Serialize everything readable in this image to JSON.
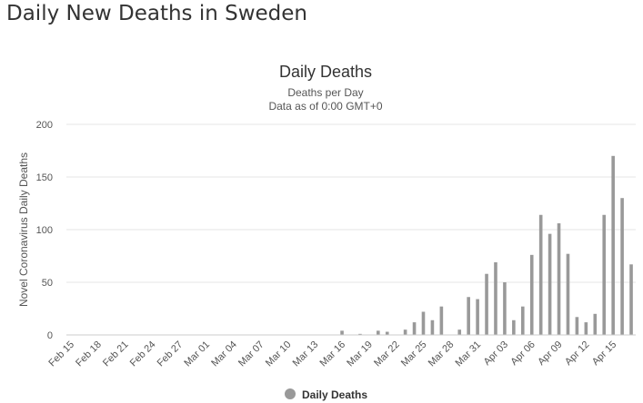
{
  "page": {
    "heading": "Daily New Deaths in Sweden"
  },
  "chart_data": {
    "type": "bar",
    "title": "Daily Deaths",
    "subtitle": [
      "Deaths per Day",
      "Data as of 0:00 GMT+0"
    ],
    "ylabel": "Novel Coronavirus Daily Deaths",
    "xlabel": "",
    "ylim": [
      0,
      200
    ],
    "yticks": [
      0,
      50,
      100,
      150,
      200
    ],
    "grid": true,
    "legend_position": "bottom-center",
    "bar_color": "#999999",
    "categories": [
      "Feb 15",
      "Feb 16",
      "Feb 17",
      "Feb 18",
      "Feb 19",
      "Feb 20",
      "Feb 21",
      "Feb 22",
      "Feb 23",
      "Feb 24",
      "Feb 25",
      "Feb 26",
      "Feb 27",
      "Feb 28",
      "Feb 29",
      "Mar 01",
      "Mar 02",
      "Mar 03",
      "Mar 04",
      "Mar 05",
      "Mar 06",
      "Mar 07",
      "Mar 08",
      "Mar 09",
      "Mar 10",
      "Mar 11",
      "Mar 12",
      "Mar 13",
      "Mar 14",
      "Mar 15",
      "Mar 16",
      "Mar 17",
      "Mar 18",
      "Mar 19",
      "Mar 20",
      "Mar 21",
      "Mar 22",
      "Mar 23",
      "Mar 24",
      "Mar 25",
      "Mar 26",
      "Mar 27",
      "Mar 28",
      "Mar 29",
      "Mar 30",
      "Mar 31",
      "Apr 01",
      "Apr 02",
      "Apr 03",
      "Apr 04",
      "Apr 05",
      "Apr 06",
      "Apr 07",
      "Apr 08",
      "Apr 09",
      "Apr 10",
      "Apr 11",
      "Apr 12",
      "Apr 13",
      "Apr 14",
      "Apr 15",
      "Apr 16",
      "Apr 17"
    ],
    "tick_labels": [
      "Feb 15",
      "Feb 18",
      "Feb 21",
      "Feb 24",
      "Feb 27",
      "Mar 01",
      "Mar 04",
      "Mar 07",
      "Mar 10",
      "Mar 13",
      "Mar 16",
      "Mar 19",
      "Mar 22",
      "Mar 25",
      "Mar 28",
      "Mar 31",
      "Apr 03",
      "Apr 06",
      "Apr 09",
      "Apr 12",
      "Apr 15"
    ],
    "series": [
      {
        "name": "Daily Deaths",
        "values": [
          0,
          0,
          0,
          0,
          0,
          0,
          0,
          0,
          0,
          0,
          0,
          0,
          0,
          0,
          0,
          0,
          0,
          0,
          0,
          0,
          0,
          0,
          0,
          0,
          0,
          0,
          0,
          0,
          0,
          0,
          4,
          0,
          1,
          0,
          4,
          3,
          0,
          5,
          12,
          22,
          14,
          27,
          0,
          5,
          36,
          34,
          58,
          69,
          50,
          14,
          27,
          76,
          114,
          96,
          106,
          77,
          17,
          12,
          20,
          114,
          170,
          130,
          67
        ]
      }
    ]
  }
}
